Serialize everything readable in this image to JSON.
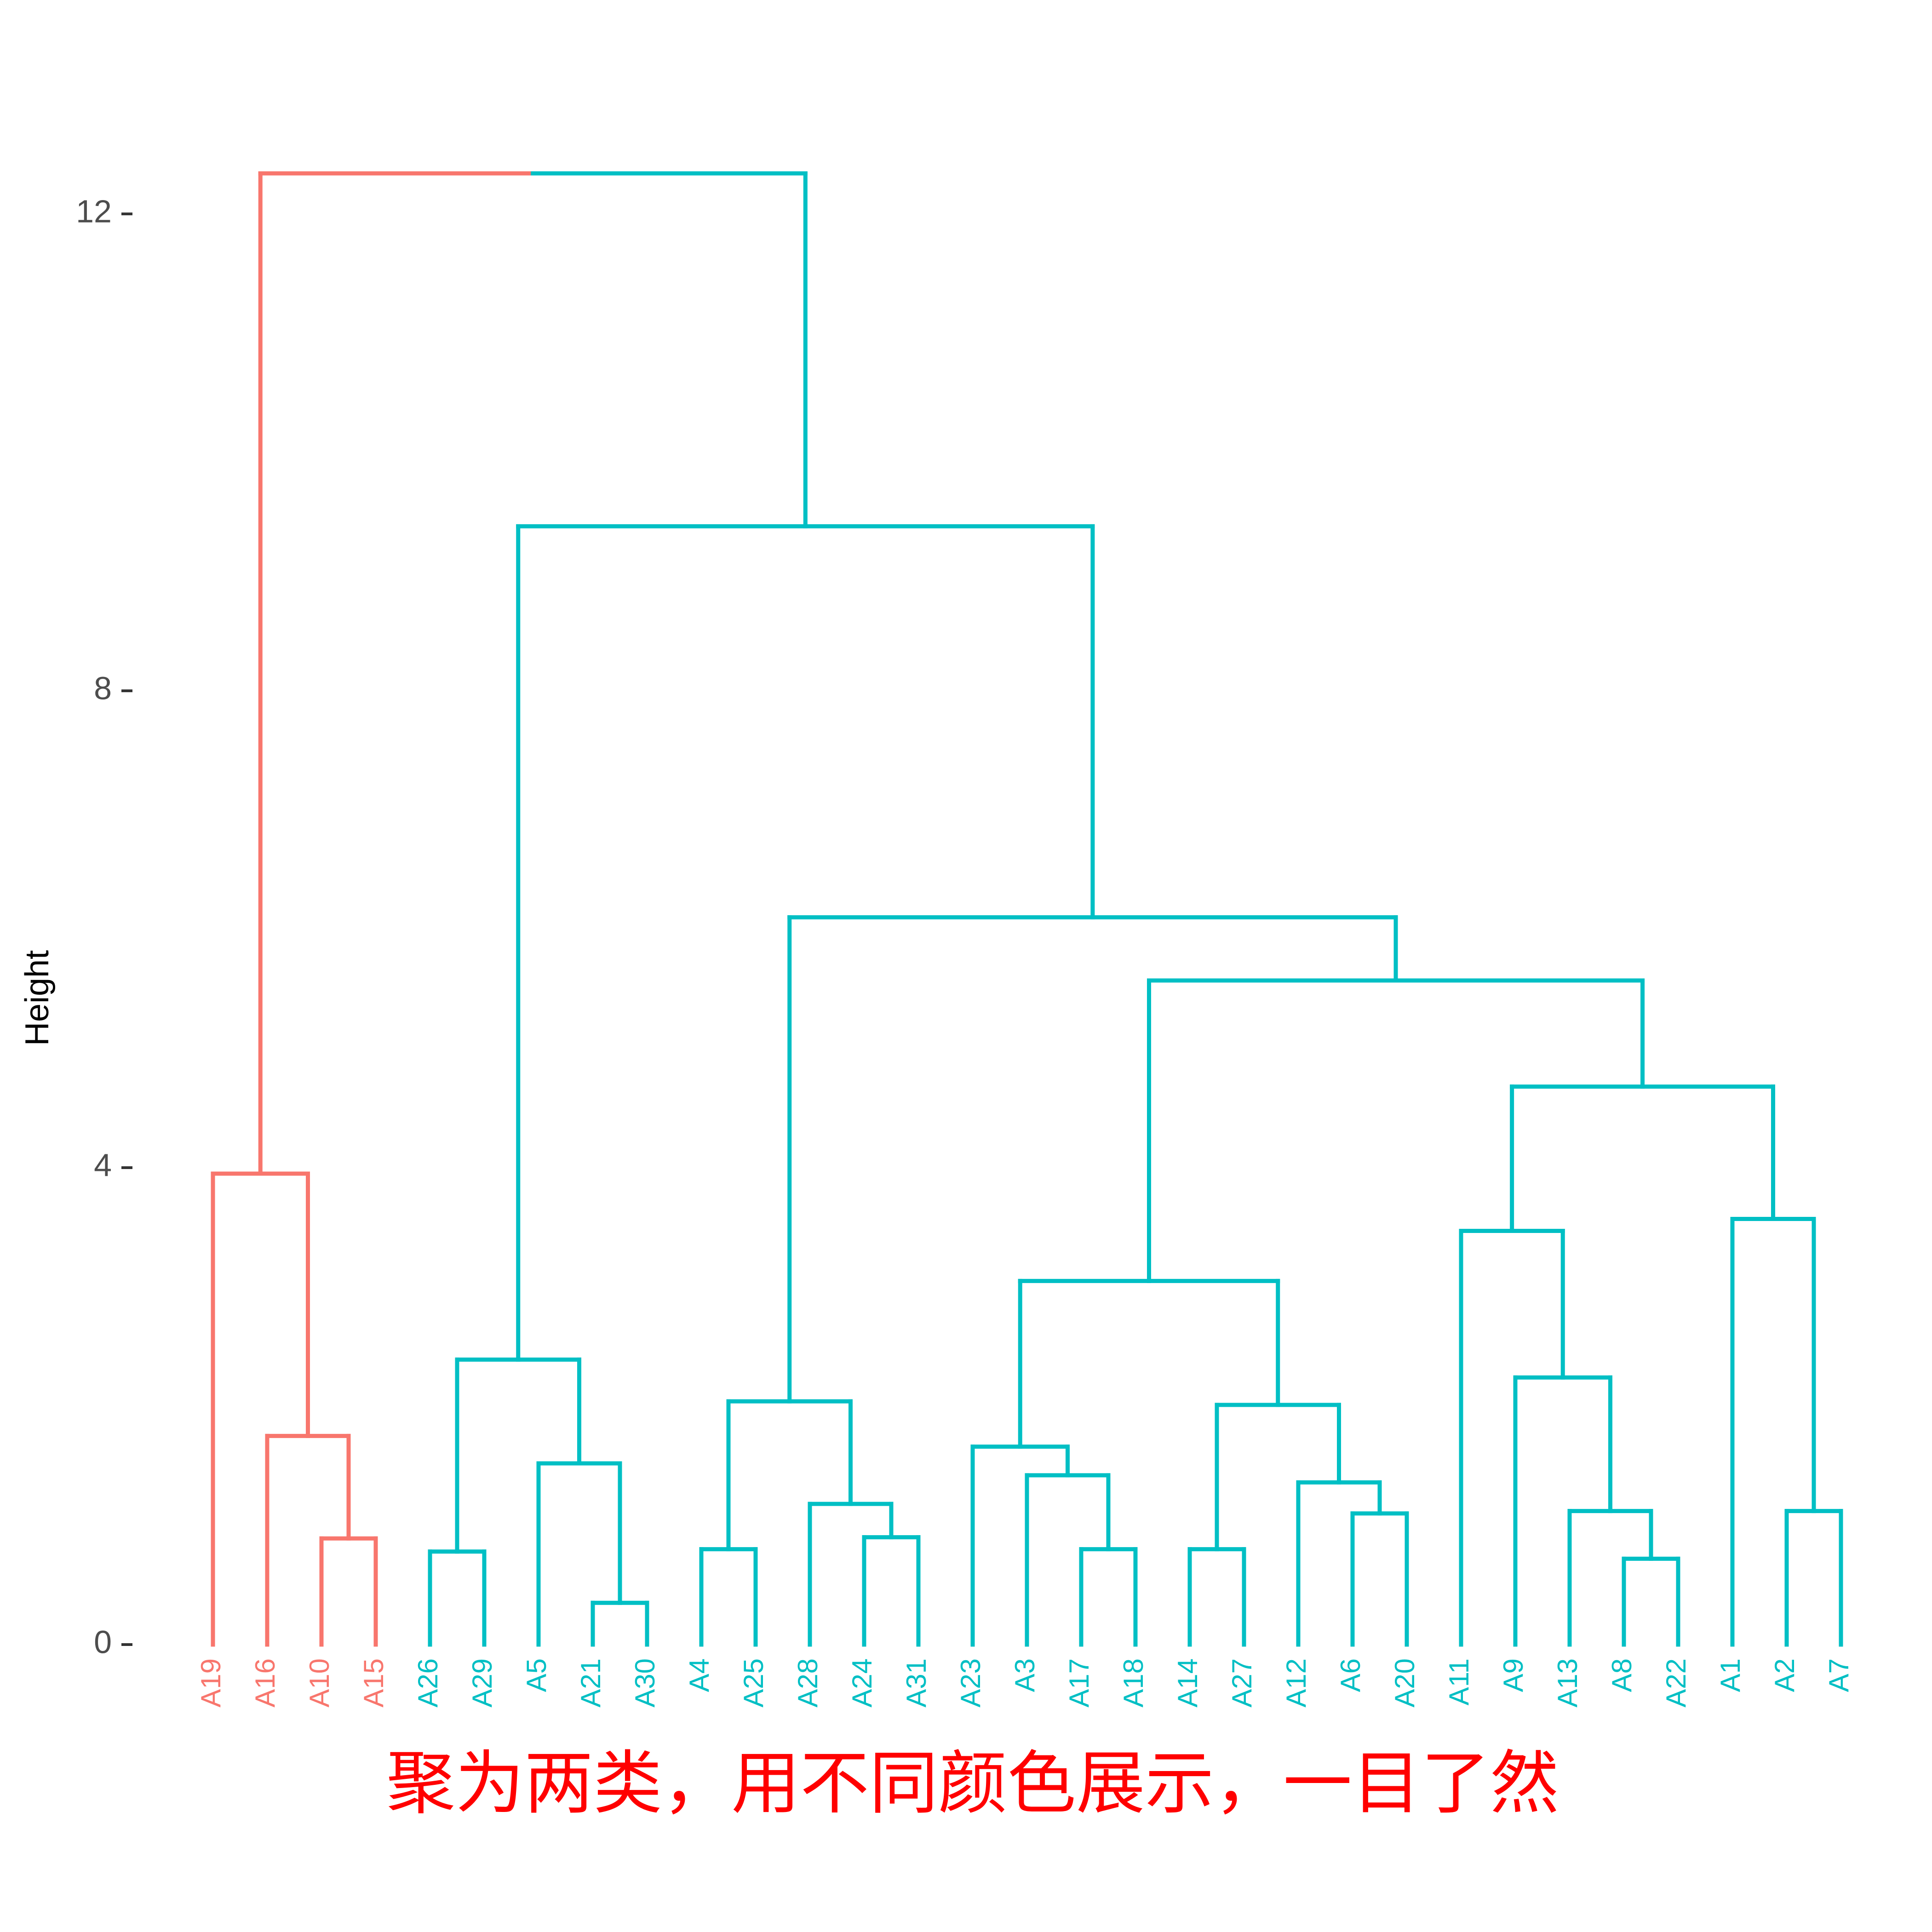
{
  "chart_data": {
    "type": "dendrogram",
    "y_label": "Height",
    "caption": "聚为两类，用不同颜色展示，一目了然",
    "ylim": [
      0,
      12.34
    ],
    "yticks": [
      0,
      4,
      8,
      12
    ],
    "tree": {
      "height": 12.34,
      "children": [
        {
          "height": 3.95,
          "color": "#f8766d",
          "children": [
            {
              "label": "A19"
            },
            {
              "height": 1.75,
              "children": [
                {
                  "label": "A16"
                },
                {
                  "height": 0.89,
                  "children": [
                    {
                      "label": "A10"
                    },
                    {
                      "label": "A15"
                    }
                  ]
                }
              ]
            }
          ]
        },
        {
          "height": 9.38,
          "color": "#00bfc4",
          "children": [
            {
              "height": 2.39,
              "children": [
                {
                  "height": 0.78,
                  "children": [
                    {
                      "label": "A26"
                    },
                    {
                      "label": "A29"
                    }
                  ]
                },
                {
                  "height": 1.52,
                  "children": [
                    {
                      "label": "A5"
                    },
                    {
                      "height": 0.35,
                      "children": [
                        {
                          "label": "A21"
                        },
                        {
                          "label": "A30"
                        }
                      ]
                    }
                  ]
                }
              ]
            },
            {
              "height": 6.1,
              "children": [
                {
                  "height": 2.04,
                  "children": [
                    {
                      "height": 0.8,
                      "children": [
                        {
                          "label": "A4"
                        },
                        {
                          "label": "A25"
                        }
                      ]
                    },
                    {
                      "height": 1.18,
                      "children": [
                        {
                          "label": "A28"
                        },
                        {
                          "height": 0.9,
                          "children": [
                            {
                              "label": "A24"
                            },
                            {
                              "label": "A31"
                            }
                          ]
                        }
                      ]
                    }
                  ]
                },
                {
                  "height": 5.57,
                  "children": [
                    {
                      "height": 3.05,
                      "children": [
                        {
                          "height": 1.66,
                          "children": [
                            {
                              "label": "A23"
                            },
                            {
                              "height": 1.42,
                              "children": [
                                {
                                  "label": "A3"
                                },
                                {
                                  "height": 0.8,
                                  "children": [
                                    {
                                      "label": "A17"
                                    },
                                    {
                                      "label": "A18"
                                    }
                                  ]
                                }
                              ]
                            }
                          ]
                        },
                        {
                          "height": 2.01,
                          "children": [
                            {
                              "height": 0.8,
                              "children": [
                                {
                                  "label": "A14"
                                },
                                {
                                  "label": "A27"
                                }
                              ]
                            },
                            {
                              "height": 1.36,
                              "children": [
                                {
                                  "label": "A12"
                                },
                                {
                                  "height": 1.1,
                                  "children": [
                                    {
                                      "label": "A6"
                                    },
                                    {
                                      "label": "A20"
                                    }
                                  ]
                                }
                              ]
                            }
                          ]
                        }
                      ]
                    },
                    {
                      "height": 4.68,
                      "children": [
                        {
                          "height": 3.47,
                          "children": [
                            {
                              "label": "A11"
                            },
                            {
                              "height": 2.24,
                              "children": [
                                {
                                  "label": "A9"
                                },
                                {
                                  "height": 1.12,
                                  "children": [
                                    {
                                      "label": "A13"
                                    },
                                    {
                                      "height": 0.72,
                                      "children": [
                                        {
                                          "label": "A8"
                                        },
                                        {
                                          "label": "A22"
                                        }
                                      ]
                                    }
                                  ]
                                }
                              ]
                            }
                          ]
                        },
                        {
                          "height": 3.57,
                          "children": [
                            {
                              "label": "A1"
                            },
                            {
                              "height": 1.12,
                              "children": [
                                {
                                  "label": "A2"
                                },
                                {
                                  "label": "A7"
                                }
                              ]
                            }
                          ]
                        }
                      ]
                    }
                  ]
                }
              ]
            }
          ]
        }
      ]
    }
  }
}
